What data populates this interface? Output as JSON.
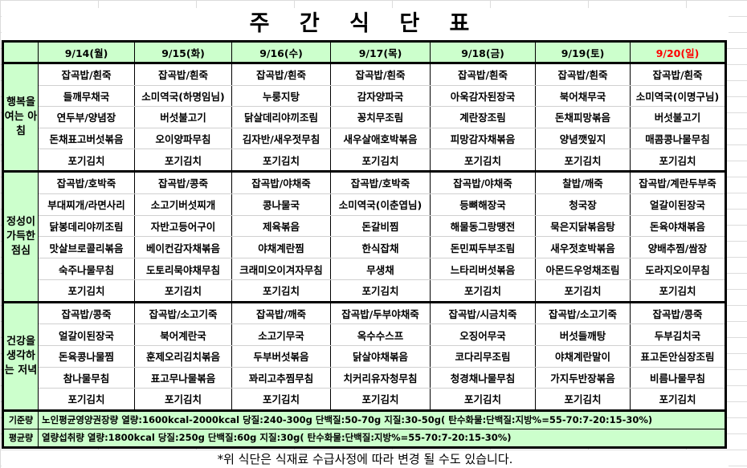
{
  "title": "주 간 식 단 표",
  "colors": {
    "header_bg": "#ccffcc",
    "sunday": "#ff0000"
  },
  "days": [
    "9/14(월)",
    "9/15(화)",
    "9/16(수)",
    "9/17(목)",
    "9/18(금)",
    "9/19(토)",
    "9/20(일)"
  ],
  "meals": [
    {
      "label": "행복을 여는 아침",
      "rows": [
        [
          "잡곡밥/흰죽",
          "잡곡밥/흰죽",
          "잡곡밥/흰죽",
          "잡곡밥/흰죽",
          "잡곡밥/흰죽",
          "잡곡밥/흰죽",
          "잡곡밥/흰죽"
        ],
        [
          "들깨무채국",
          "소미역국(하명임님)",
          "누룽지탕",
          "감자양파국",
          "아욱감자된장국",
          "북어채무국",
          "소미역국(이명구님)"
        ],
        [
          "연두부/양념장",
          "버섯불고기",
          "닭살데리야끼조림",
          "꽁치무조림",
          "계란장조림",
          "돈채피망볶음",
          "버섯불고기"
        ],
        [
          "돈채표고버섯볶음",
          "오이양파무침",
          "김자반/새우젓무침",
          "새우살애호박볶음",
          "피망감자채볶음",
          "양념깻잎지",
          "매콤콩나물무침"
        ],
        [
          "포기김치",
          "포기김치",
          "포기김치",
          "포기김치",
          "포기김치",
          "포기김치",
          "포기김치"
        ]
      ]
    },
    {
      "label": "정성이 가득한 점심",
      "rows": [
        [
          "잡곡밥/호박죽",
          "잡곡밥/콩죽",
          "잡곡밥/야채죽",
          "잡곡밥/호박죽",
          "잡곡밥/야채죽",
          "찰밥/깨죽",
          "잡곡밥/계란두부죽"
        ],
        [
          "부대찌개/라면사리",
          "소고기버섯찌개",
          "콩나물국",
          "소미역국(이춘엽님)",
          "등뼈해장국",
          "청국장",
          "얼갈이된장국"
        ],
        [
          "닭봉데리야끼조림",
          "자반고등어구이",
          "제육볶음",
          "돈갈비찜",
          "해물동그랑땡전",
          "묵은지닭볶음탕",
          "돈육야채볶음"
        ],
        [
          "맛살브로콜리볶음",
          "베이컨감자채볶음",
          "야채계란찜",
          "한식잡채",
          "돈민찌두부조림",
          "새우젓호박볶음",
          "양배추찜/쌈장"
        ],
        [
          "숙주나물무침",
          "도토리묵야채무침",
          "크래미오이겨자무침",
          "무생채",
          "느타리버섯볶음",
          "아몬드우엉채조림",
          "도라지오이무침"
        ],
        [
          "포기김치",
          "포기김치",
          "포기김치",
          "포기김치",
          "포기김치",
          "포기김치",
          "포기김치"
        ]
      ]
    },
    {
      "label": "건강을 생각하는 저녁",
      "rows": [
        [
          "잡곡밥/콩죽",
          "잡곡밥/소고기죽",
          "잡곡밥/깨죽",
          "잡곡밥/두부야채죽",
          "잡곡밥/시금치죽",
          "잡곡밥/소고기죽",
          "잡곡밥/콩죽"
        ],
        [
          "얼갈이된장국",
          "북어계란국",
          "소고기무국",
          "옥수수스프",
          "오징어무국",
          "버섯들깨탕",
          "두부김치국"
        ],
        [
          "돈육콩나물찜",
          "훈제오리김치볶음",
          "두부버섯볶음",
          "닭살야채볶음",
          "코다리무조림",
          "야채계란말이",
          "표고돈안심장조림"
        ],
        [
          "참나물무침",
          "표고무나물볶음",
          "꽈리고추찜무침",
          "치커리유자청무침",
          "청경채나물무침",
          "가지두반장볶음",
          "비름나물무침"
        ],
        [
          "포기김치",
          "포기김치",
          "포기김치",
          "포기김치",
          "포기김치",
          "포기김치",
          "포기김치"
        ]
      ]
    }
  ],
  "footer": [
    {
      "label": "기준량",
      "text": "노인평균영양권장량 열량:1600kcal-2000kcal 당질:240-300g 단백질:50-70g 지질:30-50g( 탄수화물:단백질:지방%=55-70:7-20:15-30%)"
    },
    {
      "label": "평균량",
      "text": "열량섭취량 열량:1800kcal 당질:250g 단백질:60g 지질:30g( 탄수화물:단백질:지방%=55-70:7-20:15-30%)"
    }
  ],
  "note": "*위 식단은 식재료 수급사정에 따라 변경 될 수도 있습니다."
}
